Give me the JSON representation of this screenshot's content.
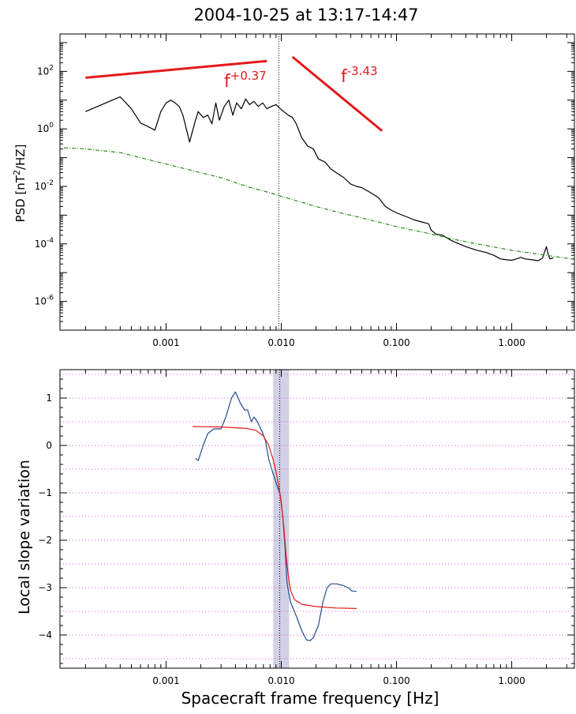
{
  "title": "2004-10-25 at 13:17-14:47",
  "chart_data": [
    {
      "type": "line",
      "scale": {
        "x": "log",
        "y": "log"
      },
      "ylabel": "PSD [nT2/HZ]",
      "xlabel": "",
      "xlim": [
        0.00012,
        3.5
      ],
      "ylim": [
        1e-07,
        2000
      ],
      "x_ticks": [
        {
          "value": 0.001,
          "label": "0.001"
        },
        {
          "value": 0.01,
          "label": "0.010"
        },
        {
          "value": 0.1,
          "label": "0.100"
        },
        {
          "value": 1.0,
          "label": "1.000"
        }
      ],
      "y_ticks": [
        {
          "value": 100,
          "base": "10",
          "exp": "2"
        },
        {
          "value": 1,
          "base": "10",
          "exp": "0"
        },
        {
          "value": 0.01,
          "base": "10",
          "exp": "-2"
        },
        {
          "value": 0.0001,
          "base": "10",
          "exp": "-4"
        },
        {
          "value": 1e-06,
          "base": "10",
          "exp": "-6"
        }
      ],
      "series": [
        {
          "color": "#000000",
          "style": "solid",
          "points": [
            [
              0.0002,
              4
            ],
            [
              0.0003,
              8
            ],
            [
              0.0004,
              13
            ],
            [
              0.0005,
              5
            ],
            [
              0.0006,
              1.6
            ],
            [
              0.0007,
              1.2
            ],
            [
              0.0008,
              0.9
            ],
            [
              0.0009,
              4
            ],
            [
              0.001,
              8
            ],
            [
              0.0011,
              10
            ],
            [
              0.0012,
              8
            ],
            [
              0.0013,
              6
            ],
            [
              0.0014,
              3
            ],
            [
              0.0016,
              0.35
            ],
            [
              0.0018,
              2
            ],
            [
              0.0019,
              4
            ],
            [
              0.0021,
              2.5
            ],
            [
              0.0023,
              3
            ],
            [
              0.0025,
              1.5
            ],
            [
              0.0027,
              8
            ],
            [
              0.0029,
              2
            ],
            [
              0.0032,
              6
            ],
            [
              0.0035,
              10
            ],
            [
              0.0038,
              3
            ],
            [
              0.0041,
              8
            ],
            [
              0.0045,
              5
            ],
            [
              0.0049,
              11
            ],
            [
              0.0053,
              7
            ],
            [
              0.0058,
              9
            ],
            [
              0.0063,
              6
            ],
            [
              0.0069,
              8
            ],
            [
              0.0075,
              5
            ],
            [
              0.0082,
              6
            ],
            [
              0.009,
              7
            ],
            [
              0.0098,
              5
            ],
            [
              0.0105,
              4
            ],
            [
              0.0115,
              3
            ],
            [
              0.0125,
              2.5
            ],
            [
              0.0135,
              1.5
            ],
            [
              0.015,
              0.5
            ],
            [
              0.017,
              0.25
            ],
            [
              0.019,
              0.2
            ],
            [
              0.021,
              0.09
            ],
            [
              0.024,
              0.07
            ],
            [
              0.027,
              0.04
            ],
            [
              0.03,
              0.03
            ],
            [
              0.035,
              0.02
            ],
            [
              0.04,
              0.012
            ],
            [
              0.045,
              0.01
            ],
            [
              0.05,
              0.009
            ],
            [
              0.06,
              0.006
            ],
            [
              0.07,
              0.004
            ],
            [
              0.08,
              0.002
            ],
            [
              0.09,
              0.0015
            ],
            [
              0.1,
              0.0012
            ],
            [
              0.12,
              0.0009
            ],
            [
              0.14,
              0.0007
            ],
            [
              0.16,
              0.0006
            ],
            [
              0.19,
              0.0005
            ],
            [
              0.2,
              0.0003
            ],
            [
              0.22,
              0.00022
            ],
            [
              0.25,
              0.0002
            ],
            [
              0.3,
              0.00013
            ],
            [
              0.35,
              0.0001
            ],
            [
              0.4,
              8e-05
            ],
            [
              0.5,
              6e-05
            ],
            [
              0.6,
              5e-05
            ],
            [
              0.7,
              4e-05
            ],
            [
              0.8,
              3e-05
            ],
            [
              0.9,
              2.8e-05
            ],
            [
              1.0,
              2.7e-05
            ],
            [
              1.1,
              3e-05
            ],
            [
              1.2,
              3.4e-05
            ],
            [
              1.3,
              3e-05
            ],
            [
              1.5,
              2.8e-05
            ],
            [
              1.7,
              2.6e-05
            ],
            [
              1.85,
              3.2e-05
            ],
            [
              1.92,
              5e-05
            ],
            [
              2.0,
              8e-05
            ],
            [
              2.08,
              4e-05
            ],
            [
              2.15,
              3e-05
            ],
            [
              2.3,
              3.3e-05
            ]
          ]
        },
        {
          "color": "#2e8b22",
          "style": "dash-dot",
          "points": [
            [
              0.00013,
              0.22
            ],
            [
              0.0002,
              0.2
            ],
            [
              0.0004,
              0.15
            ],
            [
              0.0006,
              0.1
            ],
            [
              0.001,
              0.06
            ],
            [
              0.002,
              0.03
            ],
            [
              0.003,
              0.02
            ],
            [
              0.005,
              0.01
            ],
            [
              0.008,
              0.006
            ],
            [
              0.01,
              0.0045
            ],
            [
              0.02,
              0.002
            ],
            [
              0.03,
              0.0013
            ],
            [
              0.05,
              0.0008
            ],
            [
              0.08,
              0.0005
            ],
            [
              0.1,
              0.0004
            ],
            [
              0.2,
              0.00022
            ],
            [
              0.3,
              0.00015
            ],
            [
              0.5,
              0.0001
            ],
            [
              1.0,
              6e-05
            ],
            [
              2.0,
              4e-05
            ],
            [
              3.3,
              3e-05
            ]
          ]
        }
      ],
      "vertical_line": {
        "x": 0.0095,
        "style": "dotted"
      },
      "fit_lines": [
        {
          "color": "#e41a1c",
          "points": [
            [
              0.0002,
              60
            ],
            [
              0.0075,
              230
            ]
          ],
          "label_base": "f",
          "label_exp": "+0.37"
        },
        {
          "color": "#e41a1c",
          "points": [
            [
              0.0125,
              320
            ],
            [
              0.075,
              0.85
            ]
          ],
          "label_base": "f",
          "label_exp": "-3.43"
        }
      ]
    },
    {
      "type": "line",
      "scale": {
        "x": "log",
        "y": "linear"
      },
      "ylabel": "Local slope variation",
      "xlabel": "Spacecraft frame frequency [Hz]",
      "xlim": [
        0.00012,
        3.5
      ],
      "ylim": [
        -4.7,
        1.6
      ],
      "x_ticks": [
        {
          "value": 0.001,
          "label": "0.001"
        },
        {
          "value": 0.01,
          "label": "0.010"
        },
        {
          "value": 0.1,
          "label": "0.100"
        },
        {
          "value": 1.0,
          "label": "1.000"
        }
      ],
      "y_ticks": [
        {
          "value": 1,
          "label": "1"
        },
        {
          "value": 0,
          "label": "0"
        },
        {
          "value": -1,
          "label": "−1"
        },
        {
          "value": -2,
          "label": "−2"
        },
        {
          "value": -3,
          "label": "−3"
        },
        {
          "value": -4,
          "label": "−4"
        }
      ],
      "grid": "horizontal dotted, every 0.5",
      "grid_color": "#d45fd4",
      "shaded_band": {
        "x0": 0.0085,
        "x1": 0.0117,
        "color": "#c9c9e2"
      },
      "vertical_line": {
        "x": 0.0097,
        "style": "dotted"
      },
      "series": [
        {
          "color": "#1f4e8c",
          "style": "solid",
          "points": [
            [
              0.0018,
              -0.27
            ],
            [
              0.0019,
              -0.32
            ],
            [
              0.0021,
              0.0
            ],
            [
              0.0023,
              0.25
            ],
            [
              0.0026,
              0.35
            ],
            [
              0.003,
              0.35
            ],
            [
              0.0033,
              0.6
            ],
            [
              0.0037,
              1.0
            ],
            [
              0.004,
              1.13
            ],
            [
              0.0044,
              0.9
            ],
            [
              0.0048,
              0.75
            ],
            [
              0.0051,
              0.75
            ],
            [
              0.0055,
              0.5
            ],
            [
              0.0058,
              0.6
            ],
            [
              0.0062,
              0.5
            ],
            [
              0.0068,
              0.3
            ],
            [
              0.0073,
              0.1
            ],
            [
              0.0078,
              -0.3
            ],
            [
              0.0085,
              -0.6
            ],
            [
              0.0092,
              -0.85
            ],
            [
              0.0098,
              -1.05
            ],
            [
              0.0103,
              -1.5
            ],
            [
              0.0108,
              -2.2
            ],
            [
              0.0112,
              -2.9
            ],
            [
              0.012,
              -3.3
            ],
            [
              0.0135,
              -3.6
            ],
            [
              0.015,
              -3.9
            ],
            [
              0.0165,
              -4.1
            ],
            [
              0.0178,
              -4.12
            ],
            [
              0.019,
              -4.05
            ],
            [
              0.021,
              -3.8
            ],
            [
              0.023,
              -3.3
            ],
            [
              0.025,
              -3.0
            ],
            [
              0.027,
              -2.92
            ],
            [
              0.03,
              -2.92
            ],
            [
              0.034,
              -2.95
            ],
            [
              0.038,
              -3.0
            ],
            [
              0.041,
              -3.07
            ],
            [
              0.045,
              -3.08
            ]
          ]
        },
        {
          "color": "#e41a1c",
          "style": "solid",
          "points": [
            [
              0.0017,
              0.4
            ],
            [
              0.003,
              0.39
            ],
            [
              0.005,
              0.36
            ],
            [
              0.006,
              0.32
            ],
            [
              0.007,
              0.2
            ],
            [
              0.0078,
              0.0
            ],
            [
              0.0085,
              -0.3
            ],
            [
              0.009,
              -0.55
            ],
            [
              0.0095,
              -0.85
            ],
            [
              0.01,
              -1.2
            ],
            [
              0.0105,
              -1.7
            ],
            [
              0.011,
              -2.3
            ],
            [
              0.0115,
              -2.75
            ],
            [
              0.012,
              -3.05
            ],
            [
              0.013,
              -3.25
            ],
            [
              0.015,
              -3.35
            ],
            [
              0.02,
              -3.4
            ],
            [
              0.03,
              -3.43
            ],
            [
              0.045,
              -3.44
            ]
          ]
        }
      ]
    }
  ]
}
